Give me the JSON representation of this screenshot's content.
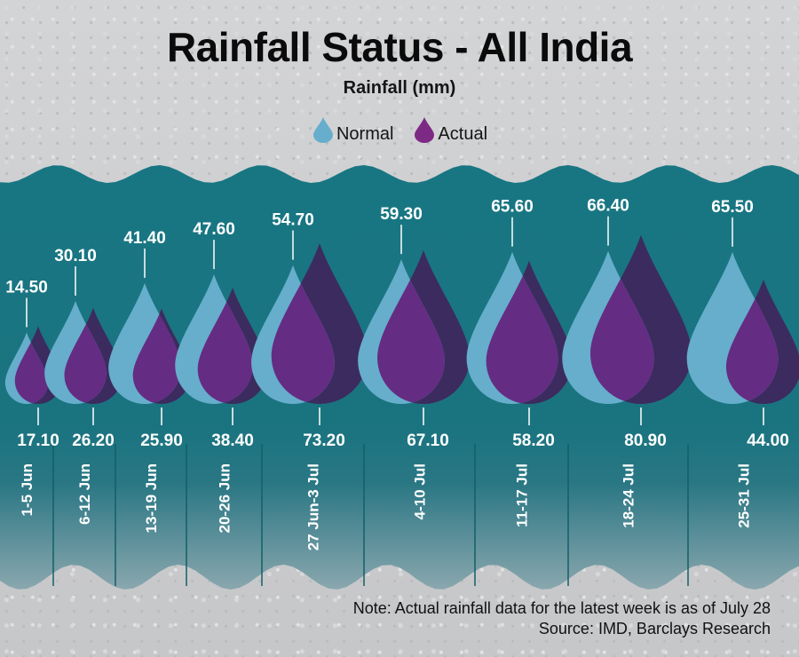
{
  "chart_data": {
    "type": "bar",
    "title": "Rainfall Status - All India",
    "subtitle": "Rainfall (mm)",
    "xlabel": "",
    "ylabel": "Rainfall (mm)",
    "legend_position": "top-center",
    "categories": [
      "1-5 Jun",
      "6-12 Jun",
      "13-19 Jun",
      "20-26 Jun",
      "27 Jun-3 Jul",
      "4-10 Jul",
      "11-17 Jul",
      "18-24 Jul",
      "25-31 Jul"
    ],
    "series": [
      {
        "name": "Normal",
        "color": "#66aecb",
        "values": [
          14.5,
          30.1,
          41.4,
          47.6,
          54.7,
          59.3,
          65.6,
          66.4,
          65.5
        ],
        "labels": [
          "14.50",
          "30.10",
          "41.40",
          "47.60",
          "54.70",
          "59.30",
          "65.60",
          "66.40",
          "65.50"
        ]
      },
      {
        "name": "Actual",
        "color": "#652c83",
        "values": [
          17.1,
          26.2,
          25.9,
          38.4,
          73.2,
          67.1,
          58.2,
          80.9,
          44.0
        ],
        "labels": [
          "17.10",
          "26.20",
          "25.90",
          "38.40",
          "73.20",
          "67.10",
          "58.20",
          "80.90",
          "44.00"
        ]
      }
    ],
    "grid": false
  },
  "legend": {
    "normal": "Normal",
    "actual": "Actual"
  },
  "colors": {
    "panel": "#187682",
    "normal": "#66aecb",
    "actual_dark": "#3c2b5e",
    "actual_overlap": "#652c83",
    "text_light": "#ffffff"
  },
  "footer": {
    "note": "Note: Actual rainfall data for the latest week is as of July 28",
    "source": "Source: IMD, Barclays Research"
  }
}
